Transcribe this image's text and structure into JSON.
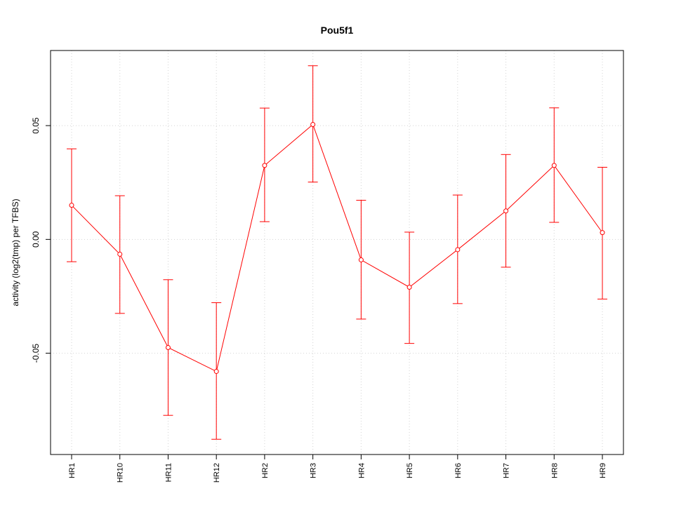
{
  "chart_data": {
    "type": "line",
    "title": "Pou5f1",
    "xlabel": "",
    "ylabel": "activity (log2(tmp) per TFBS)",
    "categories": [
      "HR1",
      "HR10",
      "HR11",
      "HR12",
      "HR2",
      "HR3",
      "HR4",
      "HR5",
      "HR6",
      "HR7",
      "HR8",
      "HR9"
    ],
    "series": [
      {
        "values": [
          0.015,
          -0.0065,
          -0.0475,
          -0.058,
          0.0325,
          0.0505,
          -0.009,
          -0.021,
          -0.0045,
          0.0125,
          0.0325,
          0.003
        ],
        "lower": [
          -0.0098,
          -0.0325,
          -0.0773,
          -0.0878,
          0.0078,
          0.0252,
          -0.035,
          -0.0457,
          -0.0282,
          -0.0122,
          0.0075,
          -0.0262
        ],
        "upper": [
          0.0398,
          0.0192,
          -0.0177,
          -0.0278,
          0.0577,
          0.0763,
          0.0172,
          0.0032,
          0.0195,
          0.0373,
          0.0578,
          0.0317
        ]
      }
    ],
    "yticks": [
      -0.05,
      0.0,
      0.05
    ],
    "ytick_labels": [
      "-0.05",
      "0.00",
      "0.05"
    ],
    "ylim": [
      -0.0945,
      0.083
    ],
    "grid": true,
    "line_color": "#ff0000",
    "grid_color": "#d3d3d3"
  }
}
